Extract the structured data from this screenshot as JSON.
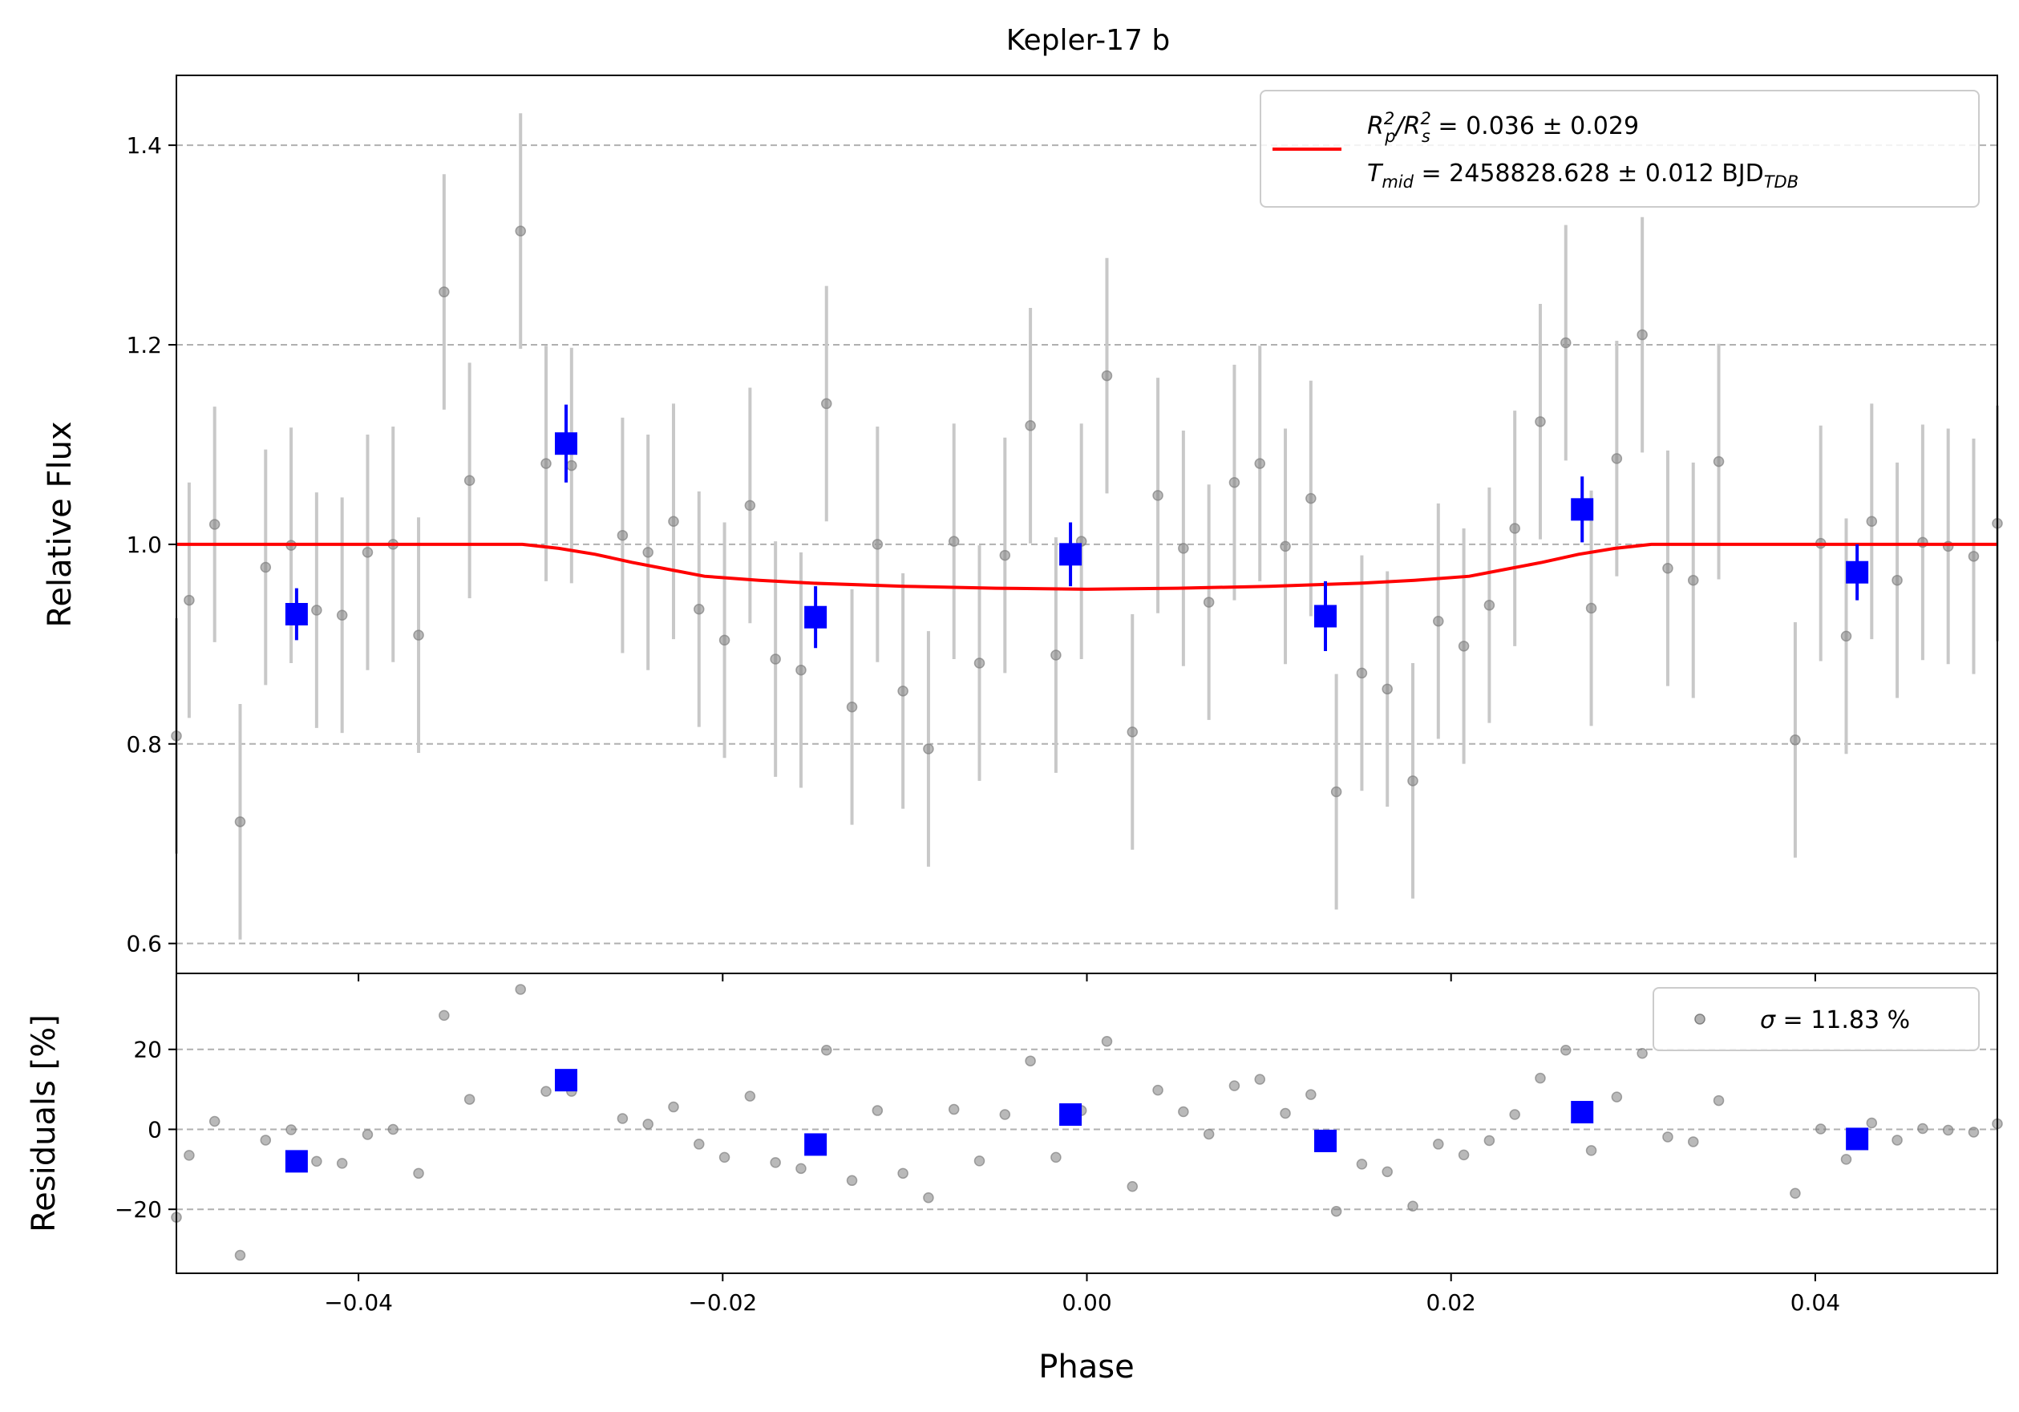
{
  "chart_data": [
    {
      "type": "scatter",
      "title": "Kepler-17 b",
      "xlabel": "",
      "ylabel": "Relative Flux",
      "xlim": [
        -0.05,
        0.05
      ],
      "ylim": [
        0.57,
        1.47
      ],
      "yticks": [
        0.6,
        0.8,
        1.0,
        1.2,
        1.4
      ],
      "ytick_labels": [
        "0.6",
        "0.8",
        "1.0",
        "1.2",
        "1.4"
      ],
      "grid": "horizontal dashed",
      "legend_placement": "top-right",
      "colors": {
        "raw": "#808080",
        "errorbar": "#c8c8c8",
        "binned": "#0000ff",
        "model": "#ff0000"
      },
      "legend": {
        "depth_label": "R_p^2/R_s^2 = 0.036 ± 0.029",
        "depth_prefix": "R",
        "depth_sub1": "p",
        "depth_mid": "/R",
        "depth_sub2": "s",
        "depth_sup": "2",
        "depth_value": " = 0.036 ± 0.029",
        "tmid_label": "T_mid = 2458828.628 ± 0.012 BJD_TDB",
        "tmid_prefix": "T",
        "tmid_sub": "mid",
        "tmid_value": " = 2458828.628 ± 0.012 BJD",
        "tmid_unit_sub": "TDB"
      },
      "series": [
        {
          "kind": "raw",
          "x": [
            -0.05,
            -0.0493,
            -0.0479,
            -0.0465,
            -0.0451,
            -0.0437,
            -0.0423,
            -0.0409,
            -0.0395,
            -0.0381,
            -0.0367,
            -0.0353,
            -0.0339,
            -0.0311,
            -0.0297,
            -0.0283,
            -0.0255,
            -0.0241,
            -0.0227,
            -0.0213,
            -0.0199,
            -0.0185,
            -0.0171,
            -0.0157,
            -0.0143,
            -0.0129,
            -0.0115,
            -0.0101,
            -0.0087,
            -0.0073,
            -0.0059,
            -0.0045,
            -0.0031,
            -0.0017,
            -0.0003,
            0.0011,
            0.0025,
            0.0039,
            0.0053,
            0.0067,
            0.0081,
            0.0095,
            0.0109,
            0.0123,
            0.0137,
            0.0151,
            0.0165,
            0.0179,
            0.0193,
            0.0207,
            0.0221,
            0.0235,
            0.0249,
            0.0263,
            0.0277,
            0.0291,
            0.0305,
            0.0319,
            0.0333,
            0.0347,
            0.0389,
            0.0403,
            0.0417,
            0.0431,
            0.0445,
            0.0459,
            0.0473,
            0.0487,
            0.05
          ],
          "y": [
            0.808,
            0.944,
            1.02,
            0.722,
            0.977,
            0.999,
            0.934,
            0.929,
            0.992,
            1.0,
            0.909,
            1.253,
            1.064,
            1.314,
            1.081,
            1.079,
            1.009,
            0.992,
            1.023,
            0.935,
            0.904,
            1.039,
            0.885,
            0.874,
            1.141,
            0.837,
            1.0,
            0.853,
            0.795,
            1.003,
            0.881,
            0.989,
            1.119,
            0.889,
            1.003,
            1.169,
            0.812,
            1.049,
            0.996,
            0.942,
            1.062,
            1.081,
            0.998,
            1.046,
            0.752,
            0.871,
            0.855,
            0.763,
            0.923,
            0.898,
            0.939,
            1.016,
            1.123,
            1.202,
            0.936,
            1.086,
            1.21,
            0.976,
            0.964,
            1.083,
            0.804,
            1.001,
            0.908,
            1.023,
            0.964,
            1.002,
            0.998,
            0.988,
            1.021
          ],
          "yerr": 0.118
        },
        {
          "kind": "binned",
          "x": [
            -0.0434,
            -0.0286,
            -0.0149,
            -0.0009,
            0.0131,
            0.0272,
            0.0423
          ],
          "y": [
            0.93,
            1.101,
            0.927,
            0.99,
            0.928,
            1.035,
            0.972
          ],
          "yerr": [
            0.026,
            0.039,
            0.031,
            0.032,
            0.035,
            0.033,
            0.028
          ]
        },
        {
          "kind": "model",
          "x": [
            -0.05,
            -0.031,
            -0.029,
            -0.027,
            -0.025,
            -0.023,
            -0.021,
            -0.018,
            -0.015,
            -0.01,
            -0.005,
            0.0,
            0.005,
            0.01,
            0.015,
            0.018,
            0.021,
            0.023,
            0.025,
            0.027,
            0.029,
            0.031,
            0.05
          ],
          "y": [
            1.0,
            1.0,
            0.996,
            0.99,
            0.982,
            0.975,
            0.968,
            0.964,
            0.961,
            0.958,
            0.956,
            0.955,
            0.956,
            0.958,
            0.961,
            0.964,
            0.968,
            0.975,
            0.982,
            0.99,
            0.996,
            1.0,
            1.0
          ]
        }
      ]
    },
    {
      "type": "scatter",
      "title": "",
      "xlabel": "Phase",
      "ylabel": "Residuals [%]",
      "xlim": [
        -0.05,
        0.05
      ],
      "ylim": [
        -36,
        39
      ],
      "xticks": [
        -0.04,
        -0.02,
        0.0,
        0.02,
        0.04
      ],
      "xtick_labels": [
        "−0.04",
        "−0.02",
        "0.00",
        "0.02",
        "0.04"
      ],
      "yticks": [
        -20,
        0,
        20
      ],
      "ytick_labels": [
        "−20",
        "0",
        "20"
      ],
      "grid": "horizontal dashed",
      "legend_placement": "top-right",
      "legend": {
        "sigma_symbol": "σ",
        "sigma_value": " = 11.83 %"
      },
      "series": [
        {
          "kind": "raw",
          "x": [
            -0.05,
            -0.0493,
            -0.0479,
            -0.0465,
            -0.0451,
            -0.0437,
            -0.0423,
            -0.0409,
            -0.0395,
            -0.0381,
            -0.0367,
            -0.0353,
            -0.0339,
            -0.0311,
            -0.0297,
            -0.0283,
            -0.0255,
            -0.0241,
            -0.0227,
            -0.0213,
            -0.0199,
            -0.0185,
            -0.0171,
            -0.0157,
            -0.0143,
            -0.0129,
            -0.0115,
            -0.0101,
            -0.0087,
            -0.0073,
            -0.0059,
            -0.0045,
            -0.0031,
            -0.0017,
            -0.0003,
            0.0011,
            0.0025,
            0.0039,
            0.0053,
            0.0067,
            0.0081,
            0.0095,
            0.0109,
            0.0123,
            0.0137,
            0.0151,
            0.0165,
            0.0179,
            0.0193,
            0.0207,
            0.0221,
            0.0235,
            0.0249,
            0.0263,
            0.0277,
            0.0291,
            0.0305,
            0.0319,
            0.0333,
            0.0347,
            0.0389,
            0.0403,
            0.0417,
            0.0431,
            0.0445,
            0.0459,
            0.0473,
            0.0487,
            0.05
          ],
          "y": [
            -22,
            -6.5,
            2,
            -31.5,
            -2.7,
            -0.1,
            -8,
            -8.5,
            -1.3,
            0,
            -11,
            28.5,
            7.5,
            35,
            9.5,
            9.5,
            2.7,
            1.3,
            5.6,
            -3.7,
            -7,
            8.3,
            -8.3,
            -9.8,
            19.8,
            -12.8,
            4.7,
            -11,
            -17.1,
            5,
            -7.9,
            3.7,
            17.1,
            -7,
            4.7,
            22,
            -14.3,
            9.8,
            4.4,
            -1.2,
            10.9,
            12.5,
            4,
            8.7,
            -20.5,
            -8.7,
            -10.6,
            -19.2,
            -3.7,
            -6.4,
            -2.8,
            3.7,
            12.8,
            19.8,
            -5.3,
            8.1,
            19,
            -1.9,
            -3.1,
            7.2,
            -16,
            0.1,
            -7.5,
            1.6,
            -2.7,
            0.2,
            -0.2,
            -0.7,
            1.4
          ]
        },
        {
          "kind": "binned",
          "x": [
            -0.0434,
            -0.0286,
            -0.0149,
            -0.0009,
            0.0131,
            0.0272,
            0.0423
          ],
          "y": [
            -8,
            12.3,
            -3.8,
            3.7,
            -2.9,
            4.3,
            -2.4
          ]
        }
      ]
    }
  ]
}
